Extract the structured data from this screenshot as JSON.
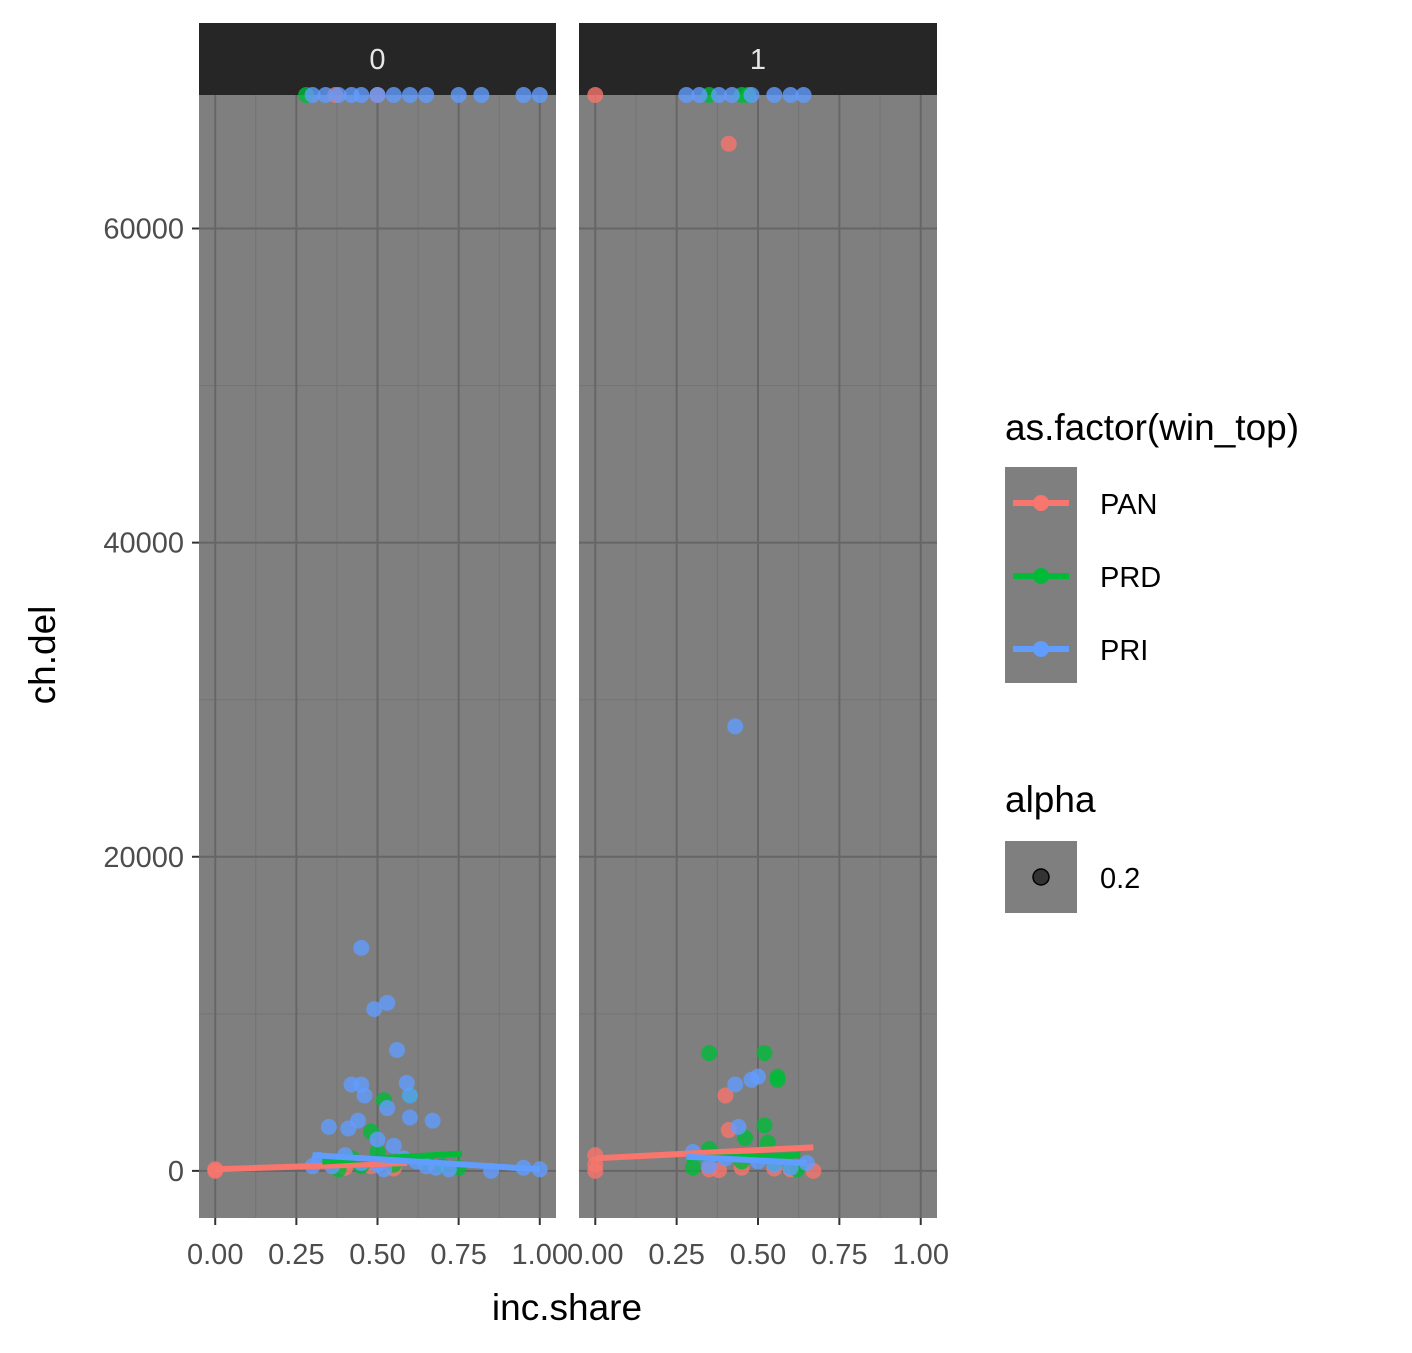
{
  "chart_data": {
    "type": "scatter",
    "facet_var_values": [
      "0",
      "1"
    ],
    "xlabel": "inc.share",
    "ylabel": "ch.del",
    "xlim": [
      -0.05,
      1.05
    ],
    "ylim": [
      -3000,
      68500
    ],
    "x_ticks": [
      "0.00",
      "0.25",
      "0.50",
      "0.75",
      "1.00"
    ],
    "x_tick_values": [
      0,
      0.25,
      0.5,
      0.75,
      1.0
    ],
    "y_ticks": [
      "0",
      "20000",
      "40000",
      "60000"
    ],
    "y_tick_values": [
      0,
      20000,
      40000,
      60000
    ],
    "grid": true,
    "point_alpha": 0.8,
    "legend_placement": "right",
    "colors": {
      "PAN": "#F8766D",
      "PRD": "#00BA38",
      "PRI": "#619CFF",
      "panel_bg": "#7f7f7f",
      "strip_bg": "#262626",
      "grid_major": "#666666",
      "grid_minor": "#737373"
    },
    "legend": {
      "color": {
        "title": "as.factor(win_top)",
        "entries": [
          "PAN",
          "PRD",
          "PRI"
        ]
      },
      "alpha": {
        "title": "alpha",
        "entries": [
          "0.2"
        ]
      }
    },
    "panels": [
      {
        "facet": "0",
        "points": {
          "PAN": [
            [
              0.0,
              100
            ],
            [
              0.37,
              68500
            ],
            [
              0.5,
              68500
            ],
            [
              0.0,
              0
            ],
            [
              0.48,
              300
            ],
            [
              0.4,
              200
            ],
            [
              0.55,
              150
            ]
          ],
          "PRD": [
            [
              0.28,
              68500
            ],
            [
              0.52,
              4500
            ],
            [
              0.6,
              4800
            ],
            [
              0.48,
              2500
            ],
            [
              0.42,
              800
            ],
            [
              0.55,
              400
            ],
            [
              0.65,
              600
            ],
            [
              0.7,
              300
            ],
            [
              0.75,
              200
            ],
            [
              0.5,
              1200
            ],
            [
              0.45,
              300
            ],
            [
              0.38,
              100
            ]
          ],
          "PRI": [
            [
              0.3,
              68500
            ],
            [
              0.34,
              68500
            ],
            [
              0.38,
              68500
            ],
            [
              0.42,
              68500
            ],
            [
              0.45,
              68500
            ],
            [
              0.5,
              68500
            ],
            [
              0.55,
              68500
            ],
            [
              0.6,
              68500
            ],
            [
              0.65,
              68500
            ],
            [
              0.75,
              68500
            ],
            [
              0.82,
              68500
            ],
            [
              0.95,
              68500
            ],
            [
              1.0,
              68500
            ],
            [
              0.45,
              14200
            ],
            [
              0.53,
              10700
            ],
            [
              0.49,
              10300
            ],
            [
              0.56,
              7700
            ],
            [
              0.42,
              5500
            ],
            [
              0.45,
              5500
            ],
            [
              0.59,
              5600
            ],
            [
              0.6,
              4800
            ],
            [
              0.46,
              4800
            ],
            [
              0.53,
              4000
            ],
            [
              0.44,
              3200
            ],
            [
              0.35,
              2800
            ],
            [
              0.41,
              2700
            ],
            [
              0.67,
              3200
            ],
            [
              0.6,
              3400
            ],
            [
              0.5,
              2000
            ],
            [
              0.55,
              1600
            ],
            [
              0.4,
              1000
            ],
            [
              0.32,
              700
            ],
            [
              0.36,
              300
            ],
            [
              0.45,
              500
            ],
            [
              0.5,
              400
            ],
            [
              0.58,
              800
            ],
            [
              0.62,
              600
            ],
            [
              0.65,
              300
            ],
            [
              0.68,
              200
            ],
            [
              0.72,
              100
            ],
            [
              0.85,
              0
            ],
            [
              0.95,
              200
            ],
            [
              1.0,
              100
            ],
            [
              0.3,
              300
            ],
            [
              0.52,
              100
            ]
          ]
        },
        "fits": {
          "PAN": [
            [
              0.0,
              100
            ],
            [
              0.59,
              500
            ]
          ],
          "PRD": [
            [
              0.33,
              600
            ],
            [
              0.76,
              1100
            ]
          ],
          "PRI": [
            [
              0.3,
              1000
            ],
            [
              1.0,
              100
            ]
          ]
        }
      },
      {
        "facet": "1",
        "points": {
          "PAN": [
            [
              0.0,
              68500
            ],
            [
              0.41,
              65400
            ],
            [
              0.4,
              4800
            ],
            [
              0.41,
              2600
            ],
            [
              0.0,
              1000
            ],
            [
              0.0,
              400
            ],
            [
              0.0,
              0
            ],
            [
              0.35,
              100
            ],
            [
              0.45,
              200
            ],
            [
              0.55,
              150
            ],
            [
              0.6,
              100
            ],
            [
              0.67,
              0
            ],
            [
              0.38,
              50
            ]
          ],
          "PRD": [
            [
              0.35,
              68500
            ],
            [
              0.45,
              68500
            ],
            [
              0.47,
              68500
            ],
            [
              0.35,
              7500
            ],
            [
              0.52,
              7500
            ],
            [
              0.56,
              6000
            ],
            [
              0.56,
              5800
            ],
            [
              0.52,
              2900
            ],
            [
              0.46,
              2100
            ],
            [
              0.53,
              1800
            ],
            [
              0.35,
              1400
            ],
            [
              0.45,
              600
            ],
            [
              0.55,
              500
            ],
            [
              0.6,
              300
            ],
            [
              0.62,
              100
            ],
            [
              0.3,
              200
            ]
          ],
          "PRI": [
            [
              0.28,
              68500
            ],
            [
              0.32,
              68500
            ],
            [
              0.38,
              68500
            ],
            [
              0.42,
              68500
            ],
            [
              0.48,
              68500
            ],
            [
              0.55,
              68500
            ],
            [
              0.6,
              68500
            ],
            [
              0.64,
              68500
            ],
            [
              0.43,
              28300
            ],
            [
              0.48,
              5800
            ],
            [
              0.5,
              6000
            ],
            [
              0.43,
              5500
            ],
            [
              0.44,
              2800
            ],
            [
              0.3,
              1200
            ],
            [
              0.4,
              800
            ],
            [
              0.5,
              600
            ],
            [
              0.55,
              400
            ],
            [
              0.6,
              200
            ],
            [
              0.65,
              500
            ],
            [
              0.35,
              300
            ]
          ]
        },
        "fits": {
          "PAN": [
            [
              0.0,
              800
            ],
            [
              0.67,
              1500
            ]
          ],
          "PRD": [
            [
              0.28,
              800
            ],
            [
              0.63,
              1000
            ]
          ],
          "PRI": [
            [
              0.28,
              900
            ],
            [
              0.65,
              500
            ]
          ]
        }
      }
    ]
  }
}
